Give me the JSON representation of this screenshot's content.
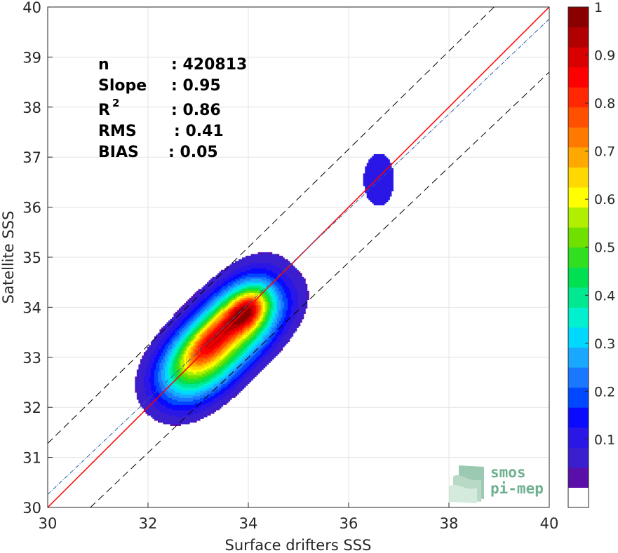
{
  "chart_data": {
    "type": "contour-scatter",
    "xlabel": "Surface drifters SSS",
    "ylabel": "Satellite SSS",
    "xlim": [
      30,
      40
    ],
    "ylim": [
      30,
      40
    ],
    "xticks": [
      "30",
      "32",
      "34",
      "36",
      "38",
      "40"
    ],
    "yticks": [
      "30",
      "31",
      "32",
      "33",
      "34",
      "35",
      "36",
      "37",
      "38",
      "39",
      "40"
    ],
    "grid": true,
    "stats": [
      {
        "label": "n",
        "value": ": 420813"
      },
      {
        "label": "Slope",
        "value": ": 0.95"
      },
      {
        "label": "R",
        "sup": "2",
        "value": ": 0.86"
      },
      {
        "label": "RMS",
        "value": ": 0.41"
      },
      {
        "label": "BIAS",
        "value": ": 0.05"
      }
    ],
    "lines": [
      {
        "kind": "identity",
        "color": "#ff0000",
        "points": [
          [
            30,
            30
          ],
          [
            40,
            40
          ]
        ]
      },
      {
        "kind": "regression",
        "color": "#2a5ea8",
        "points": [
          [
            30,
            30.26
          ],
          [
            40,
            39.76
          ]
        ]
      },
      {
        "kind": "upper-bound",
        "color": "#000000",
        "points": [
          [
            30,
            31.28
          ],
          [
            38.9,
            40
          ]
        ]
      },
      {
        "kind": "lower-bound",
        "color": "#000000",
        "points": [
          [
            30.85,
            30
          ],
          [
            40,
            38.7
          ]
        ]
      }
    ],
    "contours": [
      {
        "name": "main",
        "center": [
          33.5,
          33.4
        ],
        "slope": 1.0,
        "peaks": [
          {
            "x": 34.0,
            "y": 33.95,
            "v": 1.0
          },
          {
            "x": 33.3,
            "y": 33.35,
            "v": 0.85
          }
        ]
      },
      {
        "name": "secondary",
        "center": [
          36.6,
          36.55
        ],
        "peak": 0.1
      }
    ],
    "colorbar": {
      "min": 0,
      "max": 1,
      "ticks": [
        "0.1",
        "0.2",
        "0.3",
        "0.4",
        "0.5",
        "0.6",
        "0.7",
        "0.8",
        "0.9",
        "1"
      ],
      "colors": [
        "#ffffff",
        "#5a0fa8",
        "#3a1fcf",
        "#2a17e6",
        "#0a0aff",
        "#0048ff",
        "#1a78ff",
        "#1aa8ff",
        "#00d8ff",
        "#00f0d0",
        "#00e890",
        "#00e050",
        "#30e020",
        "#70e000",
        "#b0ef00",
        "#ffff00",
        "#ffd800",
        "#ffa800",
        "#ff7800",
        "#ff5000",
        "#ff2800",
        "#ff0000",
        "#d80000",
        "#b00000",
        "#8a0000"
      ]
    }
  },
  "logo": {
    "line1": "smos",
    "line2": "pi-mep"
  }
}
